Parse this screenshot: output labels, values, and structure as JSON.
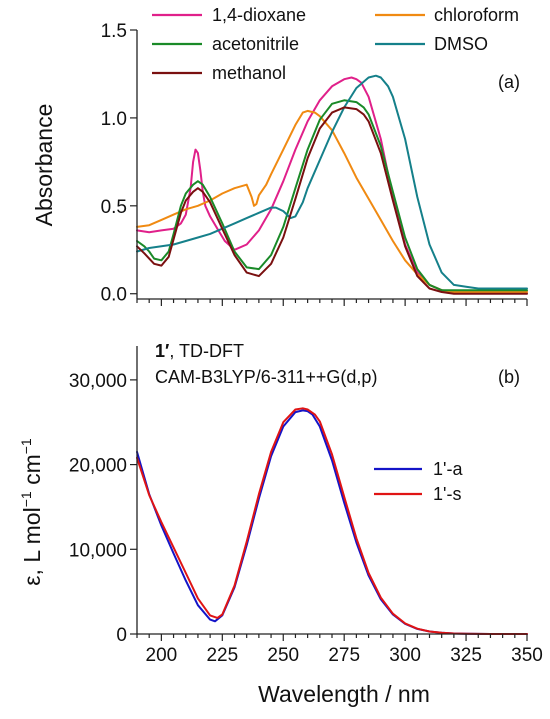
{
  "chart_data": [
    {
      "type": "line",
      "panel_label": "(a)",
      "title": "",
      "xlabel": "",
      "ylabel": "Absorbance",
      "xlim": [
        190,
        350
      ],
      "ylim": [
        -0.03,
        1.5
      ],
      "yticks": [
        0.0,
        0.5,
        1.0,
        1.5
      ],
      "ytick_labels": [
        "0.0",
        "0.5",
        "1.0",
        "1.5"
      ],
      "xticks": [
        200,
        225,
        250,
        275,
        300,
        325,
        350
      ],
      "x_minor_step": 5,
      "grid": false,
      "legend_placement": "top",
      "series": [
        {
          "name": "1,4-dioxane",
          "color": "#e0208a",
          "x": [
            190,
            195,
            200,
            205,
            208,
            210,
            212,
            213,
            214,
            215,
            216,
            217,
            218,
            220,
            223,
            226,
            230,
            235,
            240,
            245,
            250,
            255,
            260,
            265,
            270,
            275,
            278,
            280,
            282,
            285,
            290,
            295,
            300,
            305,
            310,
            315,
            320,
            325,
            330,
            335,
            340,
            350
          ],
          "y": [
            0.36,
            0.35,
            0.36,
            0.37,
            0.4,
            0.45,
            0.6,
            0.75,
            0.82,
            0.8,
            0.7,
            0.58,
            0.5,
            0.44,
            0.37,
            0.3,
            0.25,
            0.28,
            0.36,
            0.48,
            0.64,
            0.82,
            0.98,
            1.1,
            1.18,
            1.22,
            1.23,
            1.22,
            1.2,
            1.12,
            0.88,
            0.55,
            0.28,
            0.12,
            0.05,
            0.02,
            0.01,
            0.01,
            0.01,
            0.01,
            0.01,
            0.01
          ]
        },
        {
          "name": "chloroform",
          "color": "#f08a12",
          "x": [
            190,
            195,
            200,
            205,
            210,
            215,
            220,
            225,
            230,
            235,
            237,
            238,
            239,
            240,
            243,
            245,
            250,
            255,
            258,
            260,
            263,
            265,
            270,
            275,
            280,
            285,
            290,
            295,
            300,
            305,
            310,
            315,
            320,
            325,
            330,
            335,
            340,
            350
          ],
          "y": [
            0.38,
            0.39,
            0.42,
            0.45,
            0.48,
            0.5,
            0.53,
            0.57,
            0.6,
            0.62,
            0.55,
            0.5,
            0.51,
            0.56,
            0.62,
            0.68,
            0.82,
            0.96,
            1.03,
            1.04,
            1.03,
            1.01,
            0.93,
            0.8,
            0.66,
            0.54,
            0.42,
            0.3,
            0.19,
            0.11,
            0.05,
            0.02,
            0.01,
            0.01,
            0.01,
            0.01,
            0.01,
            0.01
          ]
        },
        {
          "name": "acetonitrile",
          "color": "#1a8a28",
          "x": [
            190,
            193,
            195,
            197,
            200,
            203,
            205,
            208,
            210,
            213,
            215,
            217,
            220,
            225,
            230,
            235,
            240,
            245,
            250,
            255,
            260,
            265,
            270,
            275,
            280,
            283,
            285,
            290,
            295,
            300,
            305,
            310,
            315,
            320,
            325,
            330,
            340,
            350
          ],
          "y": [
            0.3,
            0.27,
            0.24,
            0.2,
            0.19,
            0.24,
            0.34,
            0.5,
            0.57,
            0.62,
            0.64,
            0.62,
            0.55,
            0.4,
            0.24,
            0.15,
            0.14,
            0.22,
            0.38,
            0.6,
            0.82,
            0.99,
            1.08,
            1.1,
            1.09,
            1.06,
            1.02,
            0.84,
            0.58,
            0.32,
            0.14,
            0.05,
            0.02,
            0.02,
            0.02,
            0.02,
            0.02,
            0.02
          ]
        },
        {
          "name": "DMSO",
          "color": "#15808a",
          "x": [
            190,
            195,
            200,
            205,
            210,
            215,
            220,
            225,
            230,
            235,
            240,
            245,
            247,
            250,
            253,
            255,
            258,
            260,
            265,
            270,
            275,
            280,
            285,
            288,
            290,
            293,
            295,
            300,
            305,
            310,
            315,
            320,
            325,
            330,
            340,
            350
          ],
          "y": [
            0.24,
            0.26,
            0.27,
            0.28,
            0.3,
            0.32,
            0.34,
            0.37,
            0.4,
            0.43,
            0.46,
            0.49,
            0.49,
            0.47,
            0.43,
            0.44,
            0.52,
            0.6,
            0.76,
            0.92,
            1.06,
            1.17,
            1.23,
            1.24,
            1.23,
            1.18,
            1.12,
            0.88,
            0.55,
            0.28,
            0.12,
            0.05,
            0.04,
            0.03,
            0.03,
            0.03
          ]
        },
        {
          "name": "methanol",
          "color": "#7a1010",
          "x": [
            190,
            193,
            195,
            197,
            200,
            203,
            205,
            208,
            210,
            213,
            215,
            217,
            220,
            225,
            230,
            235,
            240,
            245,
            250,
            255,
            260,
            265,
            270,
            275,
            280,
            283,
            285,
            290,
            295,
            300,
            305,
            310,
            315,
            320,
            325,
            330,
            340,
            350
          ],
          "y": [
            0.27,
            0.23,
            0.2,
            0.17,
            0.16,
            0.21,
            0.31,
            0.46,
            0.53,
            0.58,
            0.6,
            0.58,
            0.52,
            0.37,
            0.22,
            0.12,
            0.1,
            0.17,
            0.32,
            0.54,
            0.77,
            0.94,
            1.03,
            1.06,
            1.05,
            1.02,
            0.98,
            0.8,
            0.53,
            0.27,
            0.1,
            0.03,
            0.01,
            0.0,
            0.0,
            0.0,
            0.0,
            0.0
          ]
        }
      ]
    },
    {
      "type": "line",
      "panel_label": "(b)",
      "title_bold": "1′",
      "title_rest": ", TD-DFT",
      "subtitle": "CAM-B3LYP/6-311++G(d,p)",
      "xlabel": "Wavelength / nm",
      "ylabel_main": "ε, L mol",
      "ylabel_exp": "−1",
      "ylabel_unit": " cm",
      "xlim": [
        190,
        350
      ],
      "ylim": [
        0,
        34000
      ],
      "yticks": [
        0,
        10000,
        20000,
        30000
      ],
      "ytick_labels": [
        "0",
        "10,000",
        "20,000",
        "30,000"
      ],
      "xticks": [
        200,
        225,
        250,
        275,
        300,
        325,
        350
      ],
      "xtick_labels": [
        "200",
        "225",
        "250",
        "275",
        "300",
        "325",
        "350"
      ],
      "x_minor_step": 5,
      "grid": false,
      "legend_placement": "right",
      "series": [
        {
          "name": "1'-a",
          "color": "#1414c8",
          "x": [
            190,
            195,
            200,
            205,
            210,
            215,
            220,
            222,
            225,
            230,
            235,
            240,
            245,
            250,
            255,
            258,
            260,
            262,
            265,
            270,
            275,
            280,
            285,
            290,
            295,
            300,
            305,
            310,
            315,
            320,
            325,
            330,
            335,
            340,
            350
          ],
          "y": [
            21500,
            16500,
            12800,
            9500,
            6300,
            3400,
            1700,
            1500,
            2200,
            5500,
            10500,
            16000,
            21000,
            24500,
            26200,
            26400,
            26300,
            25900,
            24500,
            20500,
            15500,
            10800,
            6900,
            4100,
            2300,
            1200,
            600,
            300,
            140,
            60,
            30,
            10,
            0,
            0,
            0
          ]
        },
        {
          "name": "1'-s",
          "color": "#e01414",
          "x": [
            190,
            195,
            200,
            205,
            210,
            215,
            220,
            223,
            225,
            230,
            235,
            240,
            245,
            250,
            255,
            258,
            260,
            263,
            265,
            270,
            275,
            280,
            285,
            290,
            295,
            300,
            305,
            310,
            315,
            320,
            325,
            330,
            335,
            340,
            350
          ],
          "y": [
            20800,
            16400,
            13200,
            10200,
            7200,
            4200,
            2200,
            1900,
            2300,
            5700,
            10900,
            16500,
            21500,
            25000,
            26500,
            26650,
            26500,
            25900,
            25100,
            21200,
            16200,
            11300,
            7200,
            4300,
            2400,
            1250,
            620,
            300,
            140,
            60,
            30,
            10,
            0,
            0,
            0
          ]
        }
      ]
    }
  ]
}
